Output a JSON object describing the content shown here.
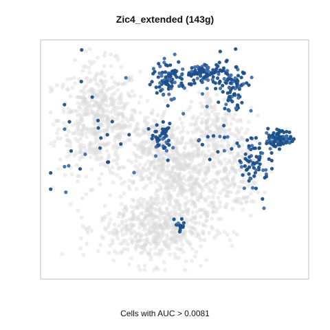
{
  "chart": {
    "title": "Zic4_extended (143g)",
    "caption": "Cells with AUC > 0.0081",
    "colors": {
      "background_cells": "#d9d9d9",
      "highlight_cells": "#1b4f8a",
      "highlight_mid": "#3f6fa8",
      "frame": "#bfbfbf"
    }
  },
  "chart_data": {
    "type": "scatter",
    "title": "Zic4_extended (143g)",
    "xlabel": "Cells with AUC > 0.0081",
    "ylabel": "",
    "axes_visible": false,
    "grid": false,
    "xlim": [
      0,
      100
    ],
    "ylim": [
      0,
      100
    ],
    "description_of_groups": "grey = all cells (embedding), blue = cells with AUC above threshold",
    "clusters": [
      {
        "role": "background",
        "cx": 20,
        "cy": 68,
        "sx": 8,
        "sy": 12,
        "n": 520
      },
      {
        "role": "background",
        "cx": 42,
        "cy": 55,
        "sx": 7,
        "sy": 9,
        "n": 260
      },
      {
        "role": "background",
        "cx": 55,
        "cy": 42,
        "sx": 9,
        "sy": 10,
        "n": 420
      },
      {
        "role": "background",
        "cx": 42,
        "cy": 20,
        "sx": 11,
        "sy": 8,
        "n": 520
      },
      {
        "role": "background",
        "cx": 66,
        "cy": 65,
        "sx": 6,
        "sy": 8,
        "n": 180
      },
      {
        "role": "background",
        "cx": 75,
        "cy": 45,
        "sx": 5,
        "sy": 9,
        "n": 140
      },
      {
        "role": "highlight",
        "cx": 47,
        "cy": 85,
        "sx": 3,
        "sy": 4,
        "n": 75
      },
      {
        "role": "highlight",
        "cx": 62,
        "cy": 88,
        "sx": 5,
        "sy": 3,
        "n": 90
      },
      {
        "role": "highlight",
        "cx": 73,
        "cy": 82,
        "sx": 3,
        "sy": 5,
        "n": 90
      },
      {
        "role": "highlight",
        "cx": 91,
        "cy": 59,
        "sx": 3,
        "sy": 2,
        "n": 80
      },
      {
        "role": "highlight",
        "cx": 82,
        "cy": 50,
        "sx": 3,
        "sy": 7,
        "n": 70
      },
      {
        "role": "highlight",
        "cx": 45,
        "cy": 60,
        "sx": 1.8,
        "sy": 4,
        "n": 45
      },
      {
        "role": "highlight",
        "cx": 52,
        "cy": 21,
        "sx": 1.2,
        "sy": 1.5,
        "n": 14
      },
      {
        "role": "highlight_sparse",
        "cx": 20,
        "cy": 60,
        "sx": 14,
        "sy": 15,
        "n": 28
      },
      {
        "role": "highlight_sparse",
        "cx": 69,
        "cy": 57,
        "sx": 4,
        "sy": 5,
        "n": 14
      }
    ]
  }
}
